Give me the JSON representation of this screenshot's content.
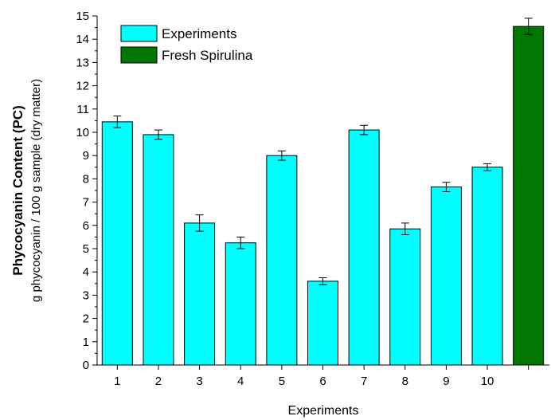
{
  "chart_data": {
    "type": "bar",
    "categories": [
      "1",
      "2",
      "3",
      "4",
      "5",
      "6",
      "7",
      "8",
      "9",
      "10",
      ""
    ],
    "series": [
      {
        "name": "Experiments",
        "color": "#00FFFF",
        "values": [
          10.45,
          9.9,
          6.1,
          5.25,
          9.0,
          3.6,
          10.1,
          5.85,
          7.65,
          8.5,
          null
        ],
        "errors": [
          0.25,
          0.2,
          0.35,
          0.25,
          0.2,
          0.15,
          0.2,
          0.25,
          0.2,
          0.15,
          null
        ]
      },
      {
        "name": "Fresh Spirulina",
        "color": "#007700",
        "values": [
          null,
          null,
          null,
          null,
          null,
          null,
          null,
          null,
          null,
          null,
          14.55
        ],
        "errors": [
          null,
          null,
          null,
          null,
          null,
          null,
          null,
          null,
          null,
          null,
          0.35
        ]
      }
    ],
    "title": "",
    "xlabel": "Experiments",
    "ylabel": "Phycocyanin Content (PC)",
    "ylabel_sub": "g phycocyanin / 100 g sample (dry matter)",
    "ylim": [
      0,
      15
    ],
    "yticks": [
      "0",
      "1",
      "2",
      "3",
      "4",
      "5",
      "6",
      "7",
      "8",
      "9",
      "10",
      "11",
      "12",
      "13",
      "14",
      "15"
    ],
    "grid": false,
    "legend_position": "top-left"
  }
}
